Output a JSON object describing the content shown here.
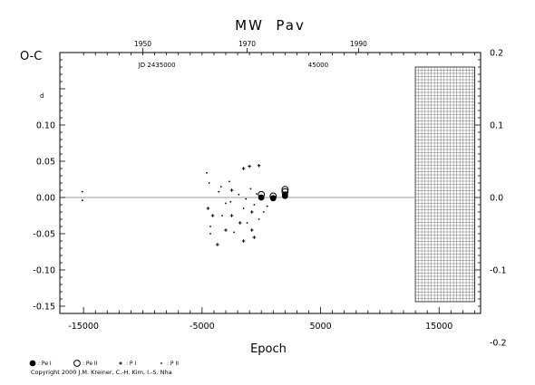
{
  "chart_data": {
    "type": "scatter",
    "title": "MW  Pav",
    "ylabel": "O-C",
    "xlabel": "Epoch",
    "xlim": [
      -17000,
      18500
    ],
    "ylim": [
      -0.16,
      0.2
    ],
    "y_unit_mark": "d",
    "x_ticks": [
      -15000,
      -5000,
      5000,
      15000
    ],
    "x_tick_labels": [
      "-15000",
      "-5000",
      "5000",
      "15000"
    ],
    "y_left_ticks": [
      0.1,
      0.05,
      0.0,
      -0.05,
      -0.1,
      -0.15
    ],
    "y_left_tick_labels": [
      "0.10",
      "0.05",
      "0.00",
      "-0.05",
      "-0.10",
      "-0.15"
    ],
    "y_right_ticks": [
      0.2,
      0.1,
      0.0,
      -0.1,
      -0.2
    ],
    "y_right_tick_labels": [
      "0.2",
      "0.1",
      "0.0",
      "-0.1",
      "-0.2"
    ],
    "top_axis": {
      "year_ticks": [
        {
          "epoch": -10000,
          "label": "1950"
        },
        {
          "epoch": -1200,
          "label": "1970"
        },
        {
          "epoch": 8200,
          "label": "1990"
        }
      ],
      "jd_labels": [
        {
          "epoch": -8800,
          "label": "JD 2435000"
        },
        {
          "epoch": 4800,
          "label": "45000"
        }
      ]
    },
    "shaded_region_x": [
      13000,
      18000
    ],
    "series": [
      {
        "name": "Pe I",
        "marker": "filled-circle",
        "x": [
          0,
          1000,
          2000,
          2000
        ],
        "y": [
          0.0,
          -0.001,
          0.002,
          0.004
        ]
      },
      {
        "name": "Pe II",
        "marker": "open-circle",
        "x": [
          0,
          1000,
          2000,
          2000
        ],
        "y": [
          0.004,
          0.002,
          0.008,
          0.011
        ]
      },
      {
        "name": "P I",
        "marker": "plus",
        "x": [
          -4500,
          -4100,
          -3700,
          -3000,
          -2500,
          -2500,
          -1800,
          -1500,
          -1500,
          -1000,
          -800,
          -800,
          -600,
          -200
        ],
        "y": [
          -0.015,
          -0.025,
          -0.065,
          -0.045,
          0.01,
          -0.025,
          -0.035,
          0.04,
          -0.06,
          0.043,
          -0.02,
          -0.045,
          -0.055,
          0.044
        ]
      },
      {
        "name": "P II",
        "marker": "dot",
        "x": [
          -15100,
          -15100,
          -4600,
          -4400,
          -4300,
          -4300,
          -3600,
          -3400,
          -3300,
          -3000,
          -2700,
          -2600,
          -2300,
          -1900,
          -1500,
          -1300,
          -1200,
          -900,
          -600,
          -400,
          -200,
          200,
          500
        ],
        "y": [
          0.008,
          -0.004,
          0.034,
          0.02,
          -0.04,
          -0.05,
          0.008,
          0.015,
          -0.025,
          -0.008,
          0.022,
          -0.006,
          -0.048,
          0.004,
          -0.015,
          -0.002,
          -0.035,
          0.012,
          -0.01,
          0.005,
          -0.03,
          -0.02,
          -0.012
        ]
      }
    ],
    "legend": [
      {
        "marker": "filled-circle",
        "label": ": Pe I"
      },
      {
        "marker": "open-circle",
        "label": ": Pe II"
      },
      {
        "marker": "plus",
        "label": ": P I"
      },
      {
        "marker": "dot",
        "label": ": P II"
      }
    ],
    "legend_position": "bottom-left",
    "copyright": "Copyright 2000 J.M. Kreiner, C.-H. Kim, I.-S. Nha"
  }
}
